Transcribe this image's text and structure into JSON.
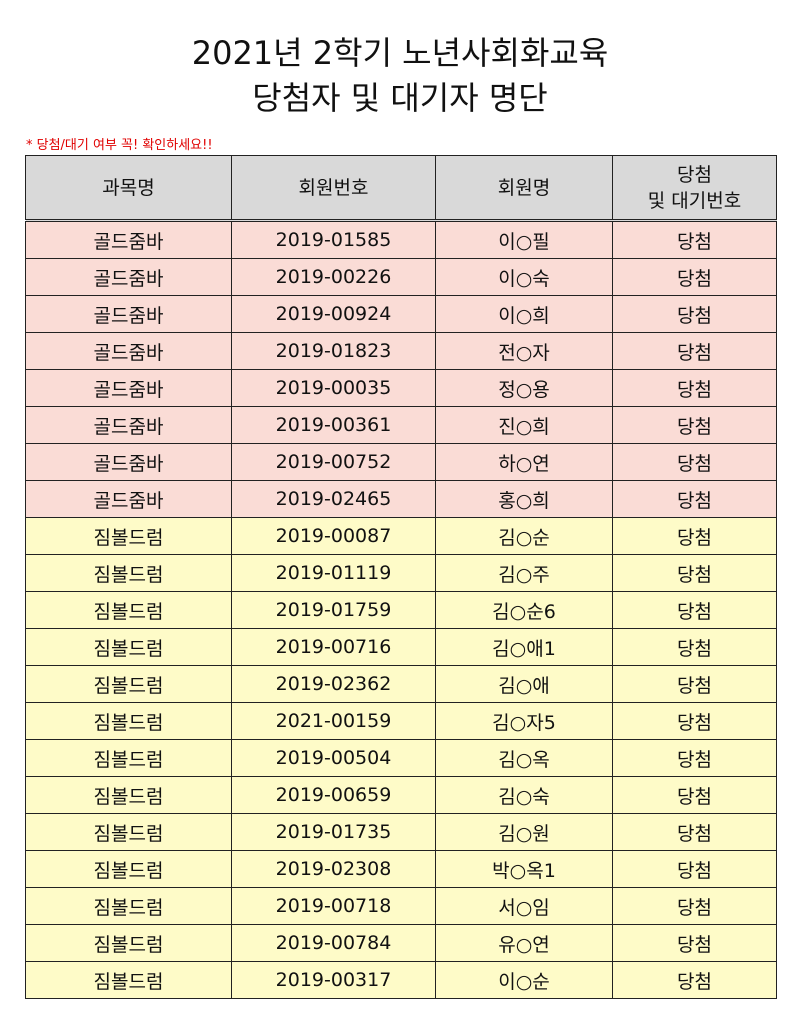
{
  "title_line1": "2021년 2학기 노년사회화교육",
  "title_line2": "당첨자 및 대기자 명단",
  "notice": "* 당첨/대기 여부 꼭! 확인하세요!!",
  "headers": {
    "course": "과목명",
    "member_no": "회원번호",
    "member_name": "회원명",
    "status_line1": "당첨",
    "status_line2": "및 대기번호"
  },
  "colors": {
    "dance_row": "#fadcd6",
    "drum_row": "#fefbc8",
    "header": "#d9d9d9",
    "notice": "#e00000"
  },
  "rows": [
    {
      "course": "골드줌바",
      "no": "2019-01585",
      "name": "이○필",
      "status": "당첨"
    },
    {
      "course": "골드줌바",
      "no": "2019-00226",
      "name": "이○숙",
      "status": "당첨"
    },
    {
      "course": "골드줌바",
      "no": "2019-00924",
      "name": "이○희",
      "status": "당첨"
    },
    {
      "course": "골드줌바",
      "no": "2019-01823",
      "name": "전○자",
      "status": "당첨"
    },
    {
      "course": "골드줌바",
      "no": "2019-00035",
      "name": "정○용",
      "status": "당첨"
    },
    {
      "course": "골드줌바",
      "no": "2019-00361",
      "name": "진○희",
      "status": "당첨"
    },
    {
      "course": "골드줌바",
      "no": "2019-00752",
      "name": "하○연",
      "status": "당첨"
    },
    {
      "course": "골드줌바",
      "no": "2019-02465",
      "name": "홍○희",
      "status": "당첨"
    },
    {
      "course": "짐볼드럼",
      "no": "2019-00087",
      "name": "김○순",
      "status": "당첨"
    },
    {
      "course": "짐볼드럼",
      "no": "2019-01119",
      "name": "김○주",
      "status": "당첨"
    },
    {
      "course": "짐볼드럼",
      "no": "2019-01759",
      "name": "김○순6",
      "status": "당첨"
    },
    {
      "course": "짐볼드럼",
      "no": "2019-00716",
      "name": "김○애1",
      "status": "당첨"
    },
    {
      "course": "짐볼드럼",
      "no": "2019-02362",
      "name": "김○애",
      "status": "당첨"
    },
    {
      "course": "짐볼드럼",
      "no": "2021-00159",
      "name": "김○자5",
      "status": "당첨"
    },
    {
      "course": "짐볼드럼",
      "no": "2019-00504",
      "name": "김○옥",
      "status": "당첨"
    },
    {
      "course": "짐볼드럼",
      "no": "2019-00659",
      "name": "김○숙",
      "status": "당첨"
    },
    {
      "course": "짐볼드럼",
      "no": "2019-01735",
      "name": "김○원",
      "status": "당첨"
    },
    {
      "course": "짐볼드럼",
      "no": "2019-02308",
      "name": "박○옥1",
      "status": "당첨"
    },
    {
      "course": "짐볼드럼",
      "no": "2019-00718",
      "name": "서○임",
      "status": "당첨"
    },
    {
      "course": "짐볼드럼",
      "no": "2019-00784",
      "name": "유○연",
      "status": "당첨"
    },
    {
      "course": "짐볼드럼",
      "no": "2019-00317",
      "name": "이○순",
      "status": "당첨"
    }
  ]
}
